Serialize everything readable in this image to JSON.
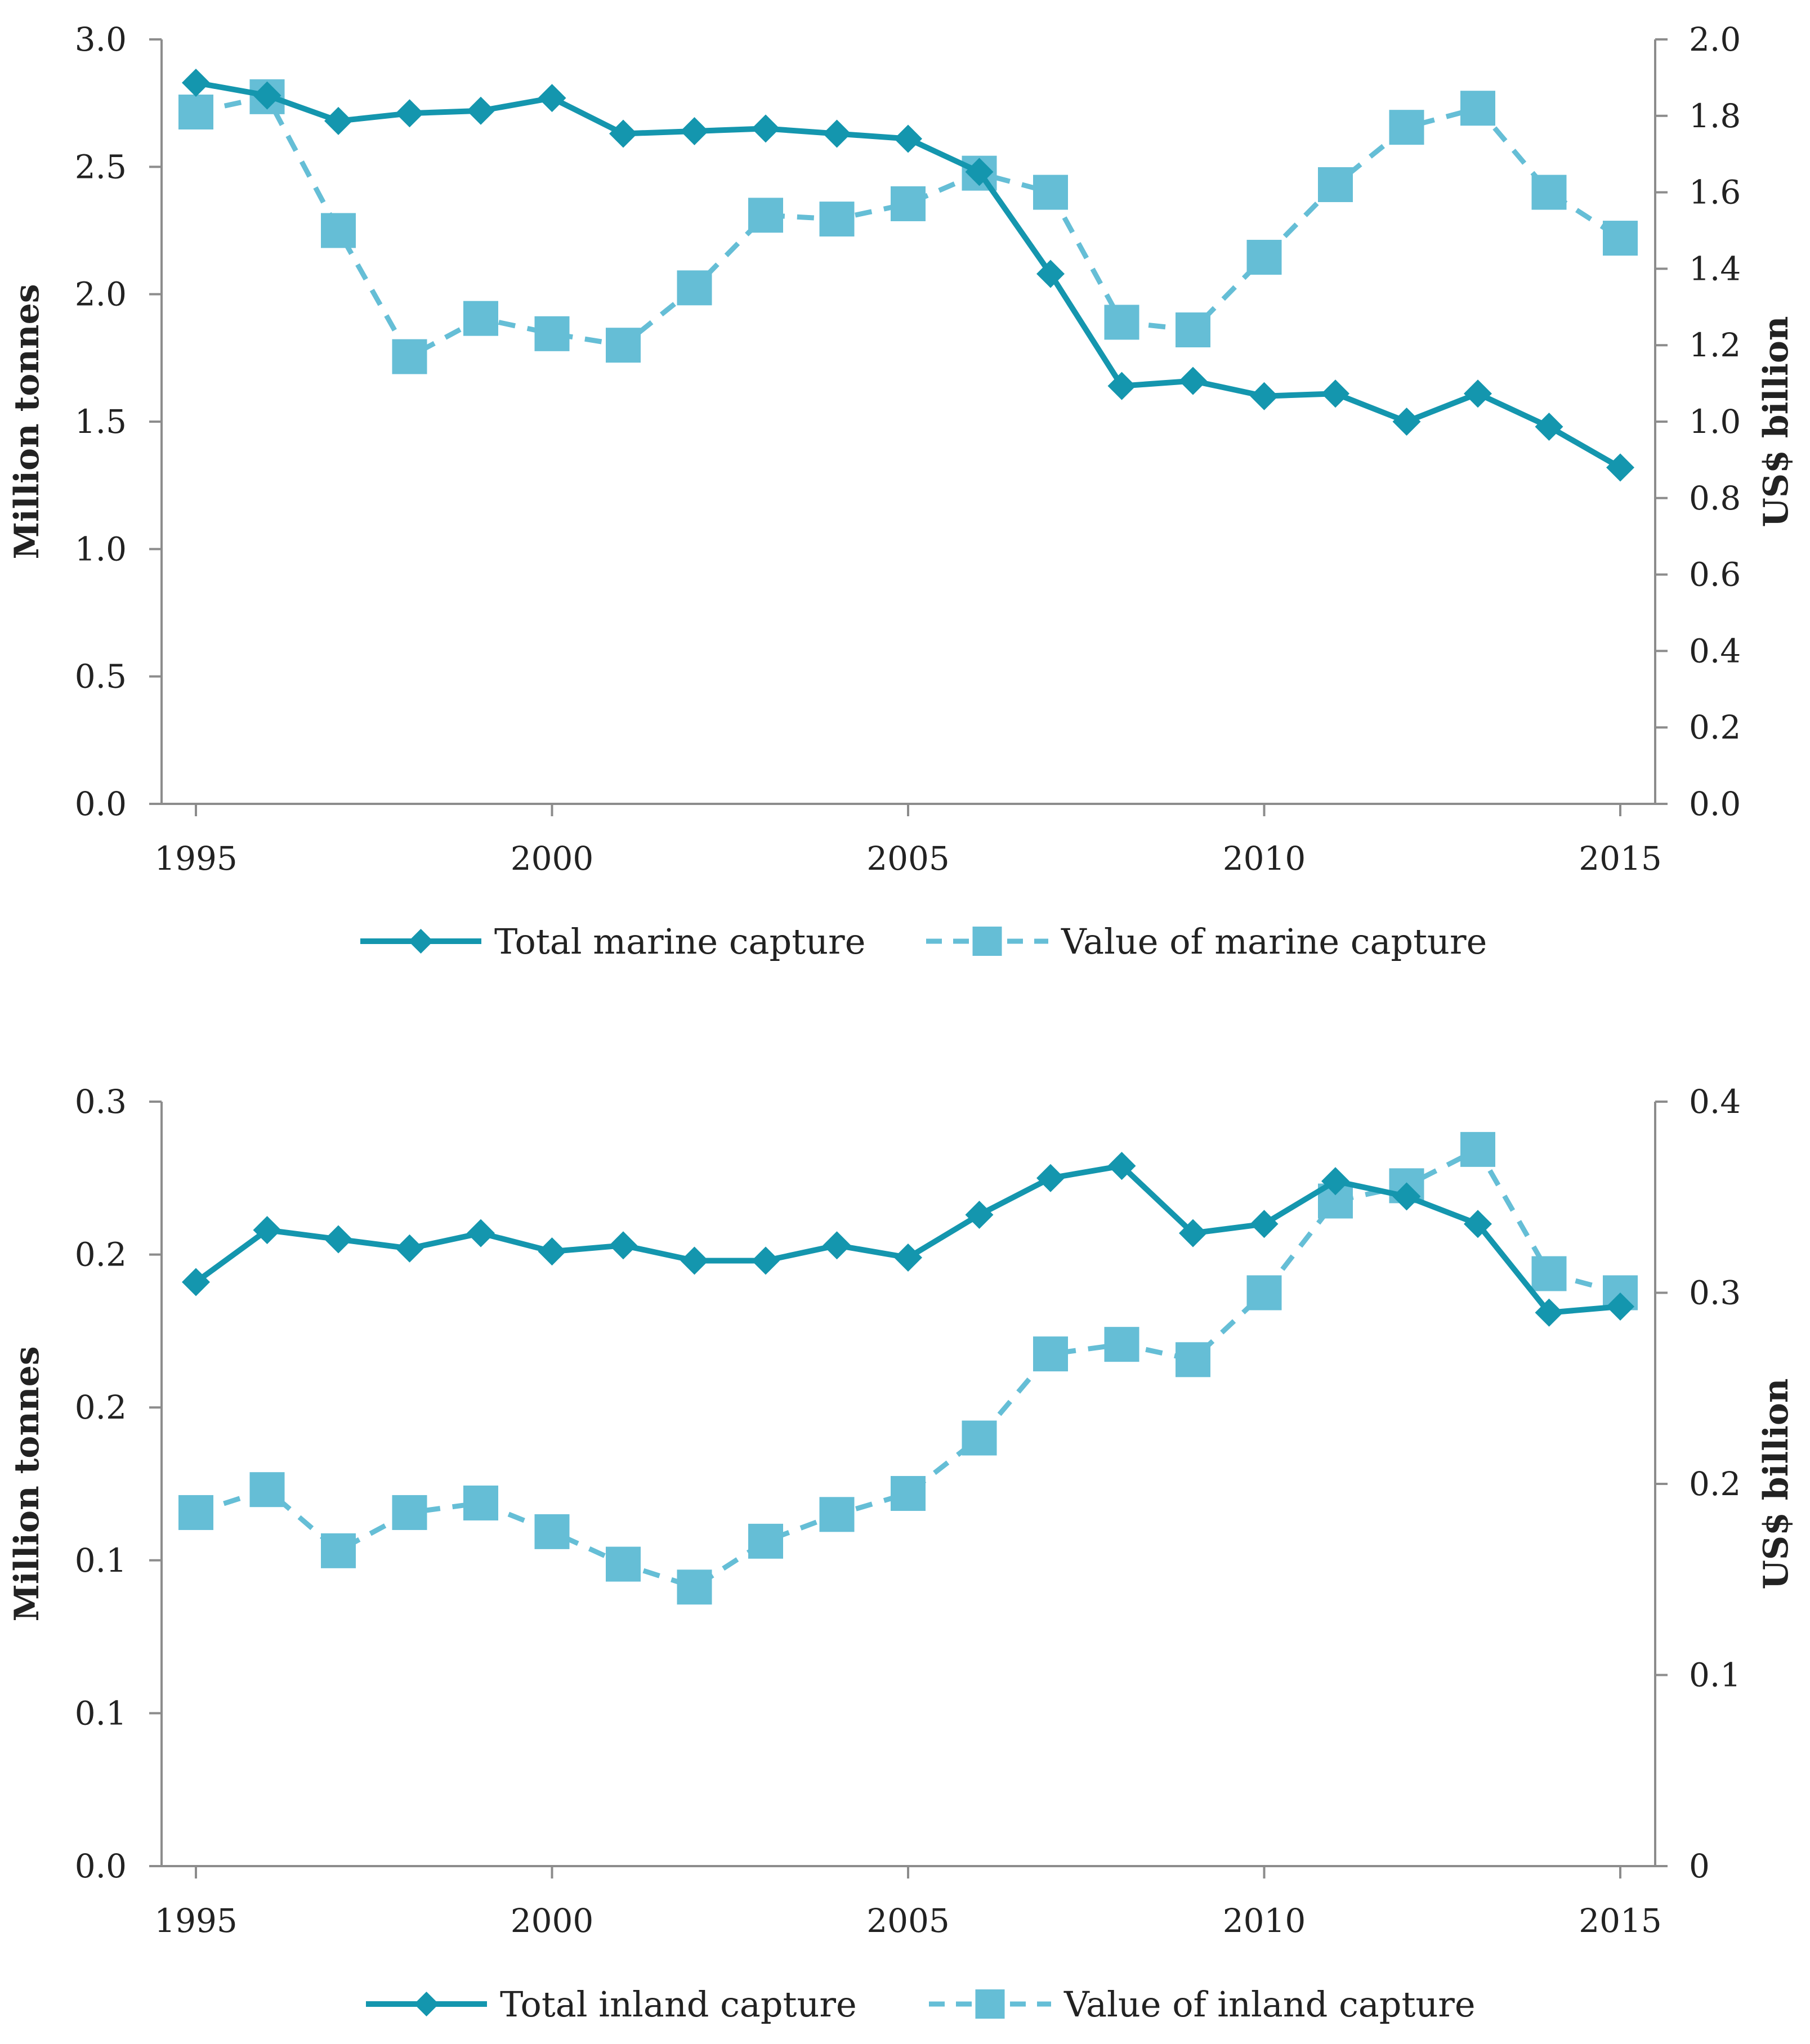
{
  "colors": {
    "tonnes": "#1496ae",
    "value": "#65bed6",
    "axis": "#8c8c8c",
    "text": "#222222"
  },
  "chart_data": [
    {
      "type": "line",
      "x": [
        1995,
        1996,
        1997,
        1998,
        1999,
        2000,
        2001,
        2002,
        2003,
        2004,
        2005,
        2006,
        2007,
        2008,
        2009,
        2010,
        2011,
        2012,
        2013,
        2014,
        2015
      ],
      "x_ticks": [
        1995,
        2000,
        2005,
        2010,
        2015
      ],
      "ylabel_left": "Million tonnes",
      "ylabel_right": "US$ billion",
      "ylim_left": [
        0,
        3
      ],
      "ylim_right": [
        0,
        2
      ],
      "yticks_left": [
        "0.0",
        "0.5",
        "1.0",
        "1.5",
        "2.0",
        "2.5",
        "3.0"
      ],
      "yticks_right": [
        "0.0",
        "0.2",
        "0.4",
        "0.6",
        "0.8",
        "1.0",
        "1.2",
        "1.4",
        "1.6",
        "1.8",
        "2.0"
      ],
      "grid": false,
      "legend_position": "bottom",
      "series": [
        {
          "name": "Total marine capture",
          "axis": "left",
          "style": "solid-diamond",
          "values": [
            2.83,
            2.78,
            2.68,
            2.71,
            2.72,
            2.77,
            2.63,
            2.64,
            2.65,
            2.63,
            2.61,
            2.48,
            2.08,
            1.64,
            1.66,
            1.6,
            1.61,
            1.5,
            1.61,
            1.48,
            1.32
          ]
        },
        {
          "name": "Value  of marine capture",
          "axis": "right",
          "style": "dashed-square",
          "values": [
            1.81,
            1.85,
            1.5,
            1.17,
            1.27,
            1.23,
            1.2,
            1.35,
            1.54,
            1.53,
            1.57,
            1.65,
            1.6,
            1.26,
            1.24,
            1.43,
            1.62,
            1.77,
            1.82,
            1.6,
            1.48
          ]
        }
      ]
    },
    {
      "type": "line",
      "x": [
        1995,
        1996,
        1997,
        1998,
        1999,
        2000,
        2001,
        2002,
        2003,
        2004,
        2005,
        2006,
        2007,
        2008,
        2009,
        2010,
        2011,
        2012,
        2013,
        2014,
        2015
      ],
      "x_ticks": [
        1995,
        2000,
        2005,
        2010,
        2015
      ],
      "ylabel_left": "Million tonnes",
      "ylabel_right": "US$ billion",
      "ylim_left": [
        0,
        0.25
      ],
      "ylim_right": [
        0,
        0.4
      ],
      "yticks_left": [
        "0.0",
        "0.1",
        "0.1",
        "0.2",
        "0.2",
        "0.3"
      ],
      "yticks_right": [
        "0",
        "0.1",
        "0.2",
        "0.3",
        "0.4"
      ],
      "grid": false,
      "legend_position": "bottom",
      "series": [
        {
          "name": "Total inland capture",
          "axis": "left",
          "style": "solid-diamond",
          "values": [
            0.191,
            0.208,
            0.205,
            0.202,
            0.207,
            0.201,
            0.203,
            0.198,
            0.198,
            0.203,
            0.199,
            0.213,
            0.225,
            0.229,
            0.207,
            0.21,
            0.224,
            0.219,
            0.21,
            0.181,
            0.183
          ]
        },
        {
          "name": "Value  of inland capture",
          "axis": "right",
          "style": "dashed-square",
          "values": [
            0.185,
            0.197,
            0.165,
            0.185,
            0.19,
            0.175,
            0.158,
            0.146,
            0.17,
            0.184,
            0.195,
            0.224,
            0.268,
            0.273,
            0.265,
            0.3,
            0.348,
            0.356,
            0.375,
            0.31,
            0.3
          ]
        }
      ]
    }
  ]
}
